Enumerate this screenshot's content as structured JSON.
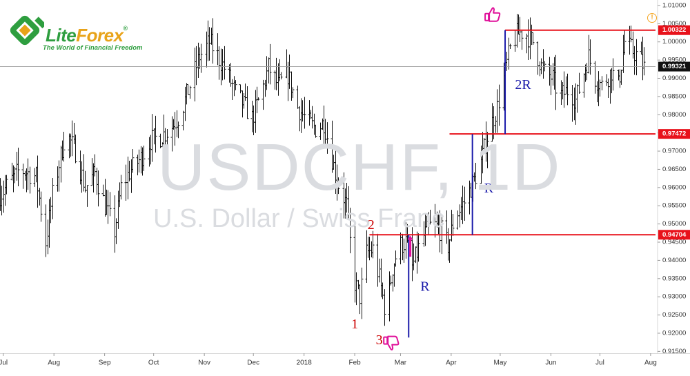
{
  "logo": {
    "brand_part1": "Lite",
    "brand_part2": "Forex",
    "registered": "®",
    "tagline": "The World of Financial Freedom",
    "colors": {
      "green": "#2e9e3f",
      "orange": "#e8a319"
    }
  },
  "watermark": {
    "symbol": "USDCHF, 1D",
    "description": "U.S. Dollar / Swiss Franc"
  },
  "chart_data": {
    "type": "ohlc",
    "instrument": "USDCHF",
    "timeframe": "1D",
    "ylim": [
      0.9145,
      1.0115
    ],
    "y_ticks": [
      0.915,
      0.92,
      0.925,
      0.93,
      0.935,
      0.94,
      0.945,
      0.95,
      0.955,
      0.96,
      0.965,
      0.97,
      0.975,
      0.98,
      0.985,
      0.99,
      0.995,
      1.0,
      1.005,
      1.01
    ],
    "y_tick_labels": [
      "0.91500",
      "0.92000",
      "0.92500",
      "0.93000",
      "0.93500",
      "0.94000",
      "0.94500",
      "0.95000",
      "0.95500",
      "0.96000",
      "0.96500",
      "0.97000",
      "0.97500",
      "0.98000",
      "0.98500",
      "0.99000",
      "0.99500",
      "1.00000",
      "1.00500",
      "1.01000"
    ],
    "x_labels": [
      {
        "label": "Jul",
        "day": 2
      },
      {
        "label": "Aug",
        "day": 33
      },
      {
        "label": "Sep",
        "day": 64
      },
      {
        "label": "Oct",
        "day": 94
      },
      {
        "label": "Nov",
        "day": 125
      },
      {
        "label": "Dec",
        "day": 155
      },
      {
        "label": "2018",
        "day": 186
      },
      {
        "label": "Feb",
        "day": 217
      },
      {
        "label": "Mar",
        "day": 245
      },
      {
        "label": "Apr",
        "day": 276
      },
      {
        "label": "May",
        "day": 306
      },
      {
        "label": "Jun",
        "day": 337
      },
      {
        "label": "Jul",
        "day": 367
      },
      {
        "label": "Aug",
        "day": 398
      }
    ],
    "x_range_days": [
      0,
      401
    ],
    "close_path": [
      [
        0,
        0.958
      ],
      [
        12,
        0.965
      ],
      [
        22,
        0.963
      ],
      [
        28,
        0.945
      ],
      [
        32,
        0.958
      ],
      [
        40,
        0.975
      ],
      [
        46,
        0.97
      ],
      [
        52,
        0.96
      ],
      [
        58,
        0.964
      ],
      [
        64,
        0.955
      ],
      [
        70,
        0.948
      ],
      [
        74,
        0.96
      ],
      [
        80,
        0.965
      ],
      [
        86,
        0.968
      ],
      [
        92,
        0.973
      ],
      [
        98,
        0.974
      ],
      [
        104,
        0.976
      ],
      [
        110,
        0.98
      ],
      [
        116,
        0.988
      ],
      [
        122,
        0.996
      ],
      [
        128,
        1.0
      ],
      [
        132,
        0.997
      ],
      [
        138,
        0.992
      ],
      [
        144,
        0.986
      ],
      [
        150,
        0.982
      ],
      [
        154,
        0.979
      ],
      [
        160,
        0.986
      ],
      [
        164,
        0.993
      ],
      [
        170,
        0.988
      ],
      [
        176,
        0.991
      ],
      [
        182,
        0.982
      ],
      [
        188,
        0.978
      ],
      [
        194,
        0.976
      ],
      [
        198,
        0.978
      ],
      [
        202,
        0.97
      ],
      [
        206,
        0.962
      ],
      [
        212,
        0.955
      ],
      [
        216,
        0.935
      ],
      [
        220,
        0.93
      ],
      [
        224,
        0.942
      ],
      [
        228,
        0.943
      ],
      [
        232,
        0.935
      ],
      [
        236,
        0.925
      ],
      [
        240,
        0.938
      ],
      [
        244,
        0.944
      ],
      [
        248,
        0.945
      ],
      [
        252,
        0.938
      ],
      [
        258,
        0.946
      ],
      [
        264,
        0.95
      ],
      [
        270,
        0.948
      ],
      [
        274,
        0.944
      ],
      [
        278,
        0.952
      ],
      [
        284,
        0.956
      ],
      [
        290,
        0.962
      ],
      [
        294,
        0.967
      ],
      [
        298,
        0.974
      ],
      [
        304,
        0.982
      ],
      [
        308,
        0.99
      ],
      [
        312,
        0.998
      ],
      [
        316,
        1.002
      ],
      [
        320,
        1.003
      ],
      [
        326,
        1.0
      ],
      [
        332,
        0.992
      ],
      [
        338,
        0.99
      ],
      [
        342,
        0.985
      ],
      [
        348,
        0.987
      ],
      [
        352,
        0.984
      ],
      [
        356,
        0.99
      ],
      [
        360,
        0.996
      ],
      [
        364,
        0.99
      ],
      [
        368,
        0.988
      ],
      [
        374,
        0.992
      ],
      [
        378,
        0.988
      ],
      [
        382,
        1.0
      ],
      [
        386,
        0.998
      ],
      [
        390,
        0.996
      ],
      [
        394,
        0.993
      ]
    ],
    "current_price": 0.99321,
    "current_price_label": "0.99321",
    "price_levels": [
      {
        "value": 1.00322,
        "label": "1.00322",
        "from_day": 309
      },
      {
        "value": 0.97472,
        "label": "0.97472",
        "from_day": 275
      },
      {
        "value": 0.94704,
        "label": "0.94704",
        "from_day": 226
      }
    ],
    "annotations": [
      {
        "text": "1",
        "day": 217,
        "price": 0.9222,
        "color": "#cc0000"
      },
      {
        "text": "2",
        "day": 227,
        "price": 0.9495,
        "color": "#cc0000"
      },
      {
        "text": "3",
        "day": 232,
        "price": 0.9178,
        "color": "#cc0000"
      },
      {
        "text": "R",
        "day": 260,
        "price": 0.9325,
        "color": "#1a1aaa"
      },
      {
        "text": "R",
        "day": 299,
        "price": 0.9595,
        "color": "#1a1aaa"
      },
      {
        "text": "2R",
        "day": 320,
        "price": 0.9879,
        "color": "#1a1aaa"
      }
    ],
    "measure_lines": [
      {
        "day": 250,
        "from": 0.9188,
        "to": 0.947,
        "color": "#1a1aaa"
      },
      {
        "day": 289,
        "from": 0.947,
        "to": 0.9747,
        "color": "#1a1aaa"
      },
      {
        "day": 309,
        "from": 0.9747,
        "to": 1.0032,
        "color": "#1a1aaa"
      }
    ],
    "arrow": {
      "day": 251,
      "from": 0.941,
      "to": 0.9468,
      "color": "#e0109a"
    },
    "thumbs_down": {
      "day": 239,
      "price": 0.9176,
      "color": "#e0109a"
    },
    "thumbs_up": {
      "day": 301,
      "price": 1.0072,
      "color": "#e0109a"
    },
    "colors": {
      "bars": "#111111",
      "level_line": "#e8121b",
      "level_label_bg": "#e8121b",
      "current_label_bg": "#111111",
      "axis_text": "#333333",
      "current_line": "#9a9a9a"
    }
  }
}
